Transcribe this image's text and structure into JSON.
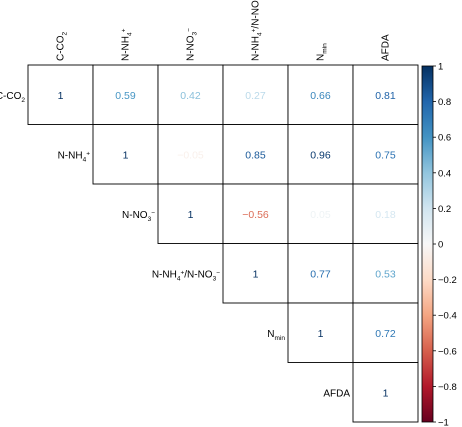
{
  "chart_data": {
    "type": "heatmap",
    "layout": "upper-triangle",
    "variables": [
      {
        "id": "C-CO2",
        "base": "C-CO",
        "sub": "2",
        "sup": ""
      },
      {
        "id": "N-NH4+",
        "base": "N-NH",
        "sub": "4",
        "sup": "+"
      },
      {
        "id": "N-NO3-",
        "base": "N-NO",
        "sub": "3",
        "sup": "−"
      },
      {
        "id": "N-NH4+/N-NO3-",
        "parts": [
          {
            "t": "N-NH",
            "s": ""
          },
          {
            "t": "4",
            "s": "sub"
          },
          {
            "t": "+",
            "s": "sup"
          },
          {
            "t": "/N-NO",
            "s": ""
          },
          {
            "t": "3",
            "s": "sub"
          },
          {
            "t": "−",
            "s": "sup"
          }
        ]
      },
      {
        "id": "Nmin",
        "base": "N",
        "sub": "min",
        "sup": ""
      },
      {
        "id": "AFDA",
        "base": "AFDA",
        "sub": "",
        "sup": ""
      }
    ],
    "matrix": [
      [
        "1",
        "0.59",
        "0.42",
        "0.27",
        "0.66",
        "0.81"
      ],
      [
        null,
        "1",
        "−0.05",
        "0.85",
        "0.96",
        "0.75"
      ],
      [
        null,
        null,
        "1",
        "−0.56",
        "0.05",
        "0.18"
      ],
      [
        null,
        null,
        null,
        "1",
        "0.77",
        "0.53"
      ],
      [
        null,
        null,
        null,
        null,
        "1",
        "0.72"
      ],
      [
        null,
        null,
        null,
        null,
        null,
        "1"
      ]
    ],
    "colorbar": {
      "range": [
        -1,
        1
      ],
      "ticks": [
        "1",
        "0.8",
        "0.6",
        "0.4",
        "0.2",
        "0",
        "−0.2",
        "−0.4",
        "−0.6",
        "−0.8",
        "−1"
      ],
      "colors": {
        "negative": "#67001f",
        "mid": "#f7f7f7",
        "positive": "#053061"
      }
    }
  }
}
